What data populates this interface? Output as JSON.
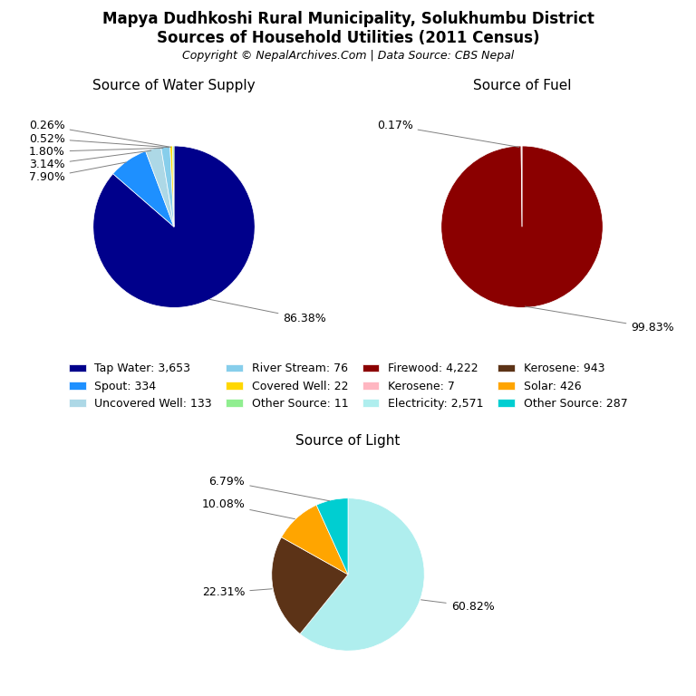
{
  "title": "Mapya Dudhkoshi Rural Municipality, Solukhumbu District",
  "subtitle": "Sources of Household Utilities (2011 Census)",
  "annotations": [
    "Copyright © NepalArchives.Com | Data Source: CBS Nepal"
  ],
  "legend": "center",
  "chart_data": [
    {
      "type": "pie",
      "title": "Source of Water Supply",
      "categories": [
        "Tap Water: 3,653",
        "Spout: 334",
        "Uncovered Well: 133",
        "River Stream: 76",
        "Covered Well: 22",
        "Other Source: 11"
      ],
      "values": [
        86.38,
        7.9,
        3.14,
        1.8,
        0.52,
        0.26
      ],
      "value_labels": [
        "86.38%",
        "7.90%",
        "3.14%",
        "1.80%",
        "0.52%",
        "0.26%"
      ],
      "colors": [
        "#00008B",
        "#1E90FF",
        "#ADD8E6",
        "#87CEEB",
        "#FFD700",
        "#90EE90"
      ],
      "data_labels": true
    },
    {
      "type": "pie",
      "title": "Source of Fuel",
      "categories": [
        "Firewood: 4,222",
        "Kerosene: 7"
      ],
      "values": [
        99.83,
        0.17
      ],
      "value_labels": [
        "99.83%",
        "0.17%"
      ],
      "colors": [
        "#8B0000",
        "#FFB6C1"
      ],
      "data_labels": true
    },
    {
      "type": "pie",
      "title": "Source of Light",
      "categories": [
        "Electricity: 2,571",
        "Kerosene: 943",
        "Solar: 426",
        "Other Source: 287"
      ],
      "values": [
        60.82,
        22.31,
        10.08,
        6.79
      ],
      "value_labels": [
        "60.82%",
        "22.31%",
        "10.08%",
        "6.79%"
      ],
      "colors": [
        "#AFEEEE",
        "#5C3317",
        "#FFA500",
        "#00CED1"
      ],
      "data_labels": true
    }
  ]
}
